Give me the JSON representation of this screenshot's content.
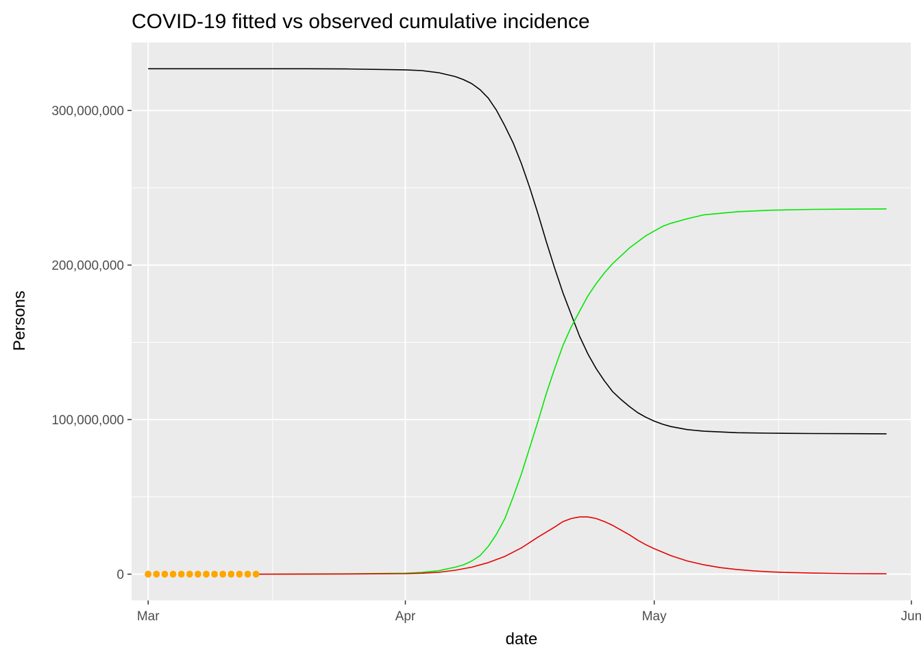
{
  "chart_data": {
    "type": "line",
    "title": "COVID-19 fitted vs observed cumulative incidence",
    "xlabel": "date",
    "ylabel": "Persons",
    "x_ticks": [
      "Mar",
      "Apr",
      "May",
      "Jun"
    ],
    "y_ticks": [
      "0",
      "100,000,000",
      "200,000,000",
      "300,000,000"
    ],
    "x_range": [
      "2020-02-28",
      "2020-06-01"
    ],
    "ylim": [
      -17000000,
      344000000
    ],
    "grid": true,
    "panel_background": "#EBEBEB",
    "series": [
      {
        "color": "#000000",
        "kind": "line",
        "x": [
          "2020-03-01",
          "2020-03-10",
          "2020-03-20",
          "2020-03-25",
          "2020-04-01",
          "2020-04-03",
          "2020-04-05",
          "2020-04-07",
          "2020-04-08",
          "2020-04-09",
          "2020-04-10",
          "2020-04-11",
          "2020-04-12",
          "2020-04-13",
          "2020-04-14",
          "2020-04-15",
          "2020-04-16",
          "2020-04-17",
          "2020-04-18",
          "2020-04-19",
          "2020-04-20",
          "2020-04-21",
          "2020-04-22",
          "2020-04-23",
          "2020-04-24",
          "2020-04-25",
          "2020-04-26",
          "2020-04-27",
          "2020-04-28",
          "2020-04-29",
          "2020-04-30",
          "2020-05-01",
          "2020-05-02",
          "2020-05-03",
          "2020-05-05",
          "2020-05-07",
          "2020-05-09",
          "2020-05-11",
          "2020-05-15",
          "2020-05-20",
          "2020-05-25",
          "2020-05-29"
        ],
        "values": [
          327000000,
          327000000,
          327000000,
          326900000,
          326300000,
          325800000,
          324500000,
          322000000,
          320000000,
          317400000,
          313500000,
          308000000,
          300000000,
          290000000,
          279000000,
          265500000,
          250000000,
          233000000,
          215000000,
          198000000,
          182000000,
          168000000,
          154000000,
          142500000,
          133000000,
          125000000,
          118000000,
          113000000,
          108500000,
          104500000,
          101500000,
          99000000,
          97000000,
          95500000,
          93500000,
          92500000,
          92000000,
          91500000,
          91200000,
          91000000,
          90900000,
          90800000
        ]
      },
      {
        "color": "#00E600",
        "kind": "line",
        "x": [
          "2020-03-14",
          "2020-03-20",
          "2020-03-25",
          "2020-04-01",
          "2020-04-03",
          "2020-04-05",
          "2020-04-07",
          "2020-04-08",
          "2020-04-09",
          "2020-04-10",
          "2020-04-11",
          "2020-04-12",
          "2020-04-13",
          "2020-04-14",
          "2020-04-15",
          "2020-04-16",
          "2020-04-17",
          "2020-04-18",
          "2020-04-19",
          "2020-04-20",
          "2020-04-21",
          "2020-04-22",
          "2020-04-23",
          "2020-04-24",
          "2020-04-25",
          "2020-04-26",
          "2020-04-27",
          "2020-04-28",
          "2020-04-29",
          "2020-04-30",
          "2020-05-01",
          "2020-05-02",
          "2020-05-03",
          "2020-05-05",
          "2020-05-07",
          "2020-05-09",
          "2020-05-11",
          "2020-05-15",
          "2020-05-20",
          "2020-05-25",
          "2020-05-29"
        ],
        "values": [
          0,
          100000,
          200000,
          600000,
          1200000,
          2200000,
          4500000,
          6000000,
          8500000,
          12000000,
          18000000,
          26000000,
          36000000,
          50000000,
          65000000,
          82000000,
          99000000,
          117000000,
          133000000,
          148000000,
          160000000,
          170000000,
          180000000,
          188000000,
          195000000,
          201000000,
          206000000,
          211000000,
          215000000,
          219000000,
          222000000,
          225000000,
          227000000,
          230000000,
          232500000,
          233500000,
          234500000,
          235500000,
          236000000,
          236200000,
          236300000
        ]
      },
      {
        "color": "#E60000",
        "kind": "line",
        "x": [
          "2020-03-14",
          "2020-03-25",
          "2020-04-01",
          "2020-04-03",
          "2020-04-05",
          "2020-04-07",
          "2020-04-09",
          "2020-04-11",
          "2020-04-13",
          "2020-04-15",
          "2020-04-17",
          "2020-04-19",
          "2020-04-20",
          "2020-04-21",
          "2020-04-22",
          "2020-04-23",
          "2020-04-24",
          "2020-04-25",
          "2020-04-26",
          "2020-04-27",
          "2020-04-28",
          "2020-04-29",
          "2020-04-30",
          "2020-05-01",
          "2020-05-03",
          "2020-05-05",
          "2020-05-07",
          "2020-05-09",
          "2020-05-11",
          "2020-05-13",
          "2020-05-15",
          "2020-05-17",
          "2020-05-20",
          "2020-05-25",
          "2020-05-29"
        ],
        "values": [
          0,
          100000,
          300000,
          600000,
          1200000,
          2500000,
          4500000,
          7500000,
          11500000,
          17000000,
          24000000,
          30500000,
          34000000,
          36000000,
          37000000,
          37000000,
          36000000,
          34000000,
          31500000,
          28500000,
          25500000,
          22000000,
          19000000,
          16500000,
          12000000,
          8500000,
          6000000,
          4200000,
          3000000,
          2100000,
          1500000,
          1100000,
          700000,
          300000,
          200000
        ]
      },
      {
        "color": "#FFA500",
        "kind": "points",
        "x": [
          "2020-03-01",
          "2020-03-02",
          "2020-03-03",
          "2020-03-04",
          "2020-03-05",
          "2020-03-06",
          "2020-03-07",
          "2020-03-08",
          "2020-03-09",
          "2020-03-10",
          "2020-03-11",
          "2020-03-12",
          "2020-03-13",
          "2020-03-14"
        ],
        "values": [
          30,
          40,
          60,
          90,
          130,
          200,
          300,
          420,
          560,
          750,
          1050,
          1350,
          1900,
          2700
        ]
      }
    ]
  }
}
